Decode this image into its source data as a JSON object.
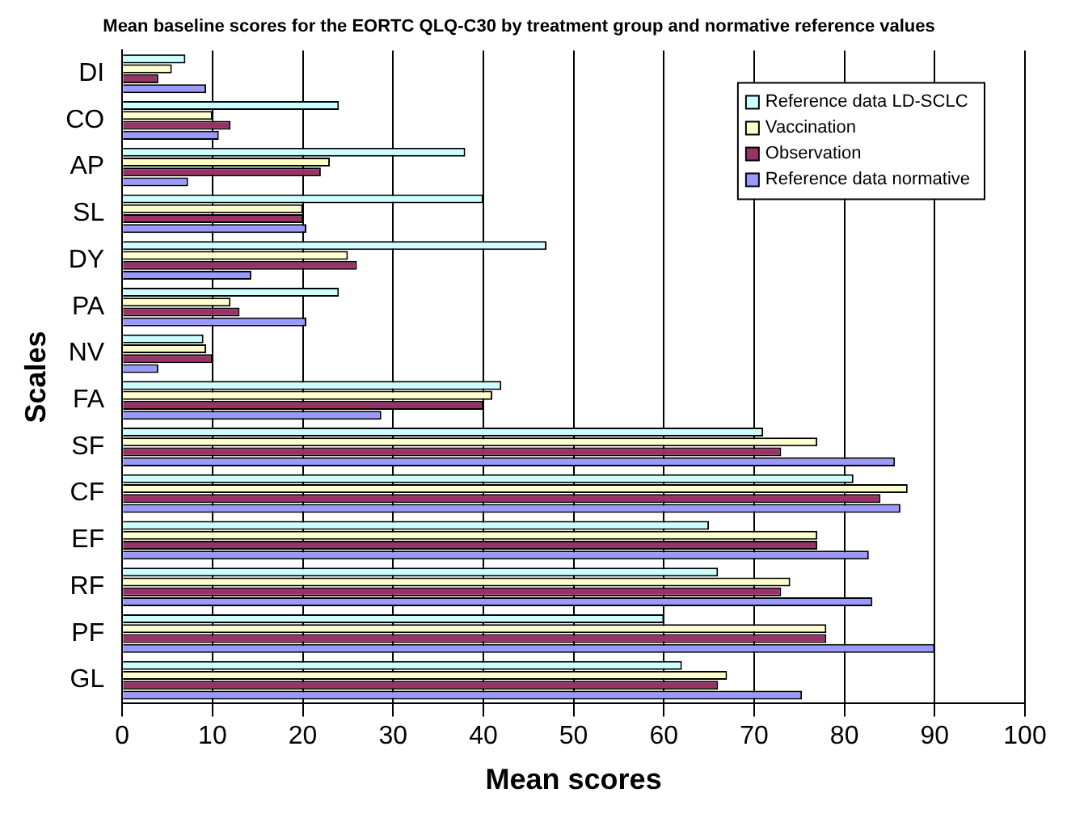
{
  "chart_data": {
    "type": "bar",
    "orientation": "horizontal",
    "title": "Mean baseline scores for the EORTC QLQ-C30 by treatment group and normative reference values",
    "xlabel": "Mean scores",
    "ylabel": "Scales",
    "categories": [
      "DI",
      "CO",
      "AP",
      "SL",
      "DY",
      "PA",
      "NV",
      "FA",
      "SF",
      "CF",
      "EF",
      "RF",
      "PF",
      "GL"
    ],
    "series": [
      {
        "name": "Reference data LD-SCLC",
        "color": "#ccffff",
        "values": [
          7,
          24,
          38,
          40,
          47,
          24,
          9,
          42,
          71,
          81,
          65,
          66,
          60,
          62
        ]
      },
      {
        "name": "Vaccination",
        "color": "#ffffcc",
        "values": [
          5.5,
          10,
          23,
          20,
          25,
          12,
          9.3,
          41,
          77,
          87,
          77,
          74,
          78,
          67
        ]
      },
      {
        "name": "Observation",
        "color": "#993366",
        "values": [
          4,
          12,
          22,
          20,
          26,
          13,
          10,
          40,
          73,
          84,
          77,
          73,
          78,
          66
        ]
      },
      {
        "name": "Reference data normative",
        "color": "#9999ff",
        "values": [
          9.3,
          10.7,
          7.3,
          20.4,
          14.3,
          20.4,
          4,
          28.7,
          85.6,
          86.2,
          82.7,
          83.1,
          90,
          75.3
        ]
      }
    ],
    "xlim": [
      0,
      100
    ],
    "xticks": [
      0,
      10,
      20,
      30,
      40,
      50,
      60,
      70,
      80,
      90,
      100
    ],
    "grid": "x",
    "legend": "top right"
  }
}
